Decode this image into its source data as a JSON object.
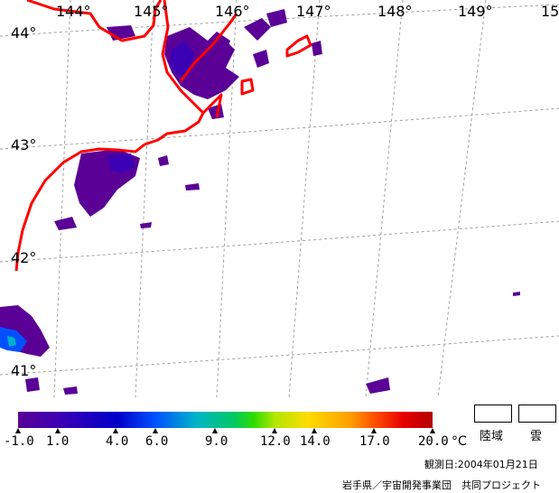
{
  "map": {
    "longitude_labels": [
      "144°",
      "145°",
      "146°",
      "147°",
      "148°",
      "149°",
      "15"
    ],
    "latitude_labels": [
      "44°",
      "43°",
      "42°",
      "41°"
    ]
  },
  "colorbar": {
    "tick_labels": [
      "-1.0",
      "1.0",
      "4.0",
      "6.0",
      "9.0",
      "12.0",
      "14.0",
      "17.0",
      "20.0"
    ],
    "unit": "°C",
    "colors": [
      "#5a0096",
      "#3c00b4",
      "#0000c8",
      "#0050ff",
      "#00b4c8",
      "#00c864",
      "#32dc00",
      "#b4e600",
      "#ffdc00",
      "#ffa000",
      "#ff5000",
      "#e60000",
      "#b40000"
    ]
  },
  "legend": {
    "land_label": "陸域",
    "cloud_label": "雲"
  },
  "observation_date": "観測日:2004年01月21日",
  "credit": "岩手県／宇宙開発事業団　共同プロジェクト",
  "colors": {
    "coastline": "#ff0000",
    "grid": "#999999",
    "sst_low": "#5a0096"
  }
}
